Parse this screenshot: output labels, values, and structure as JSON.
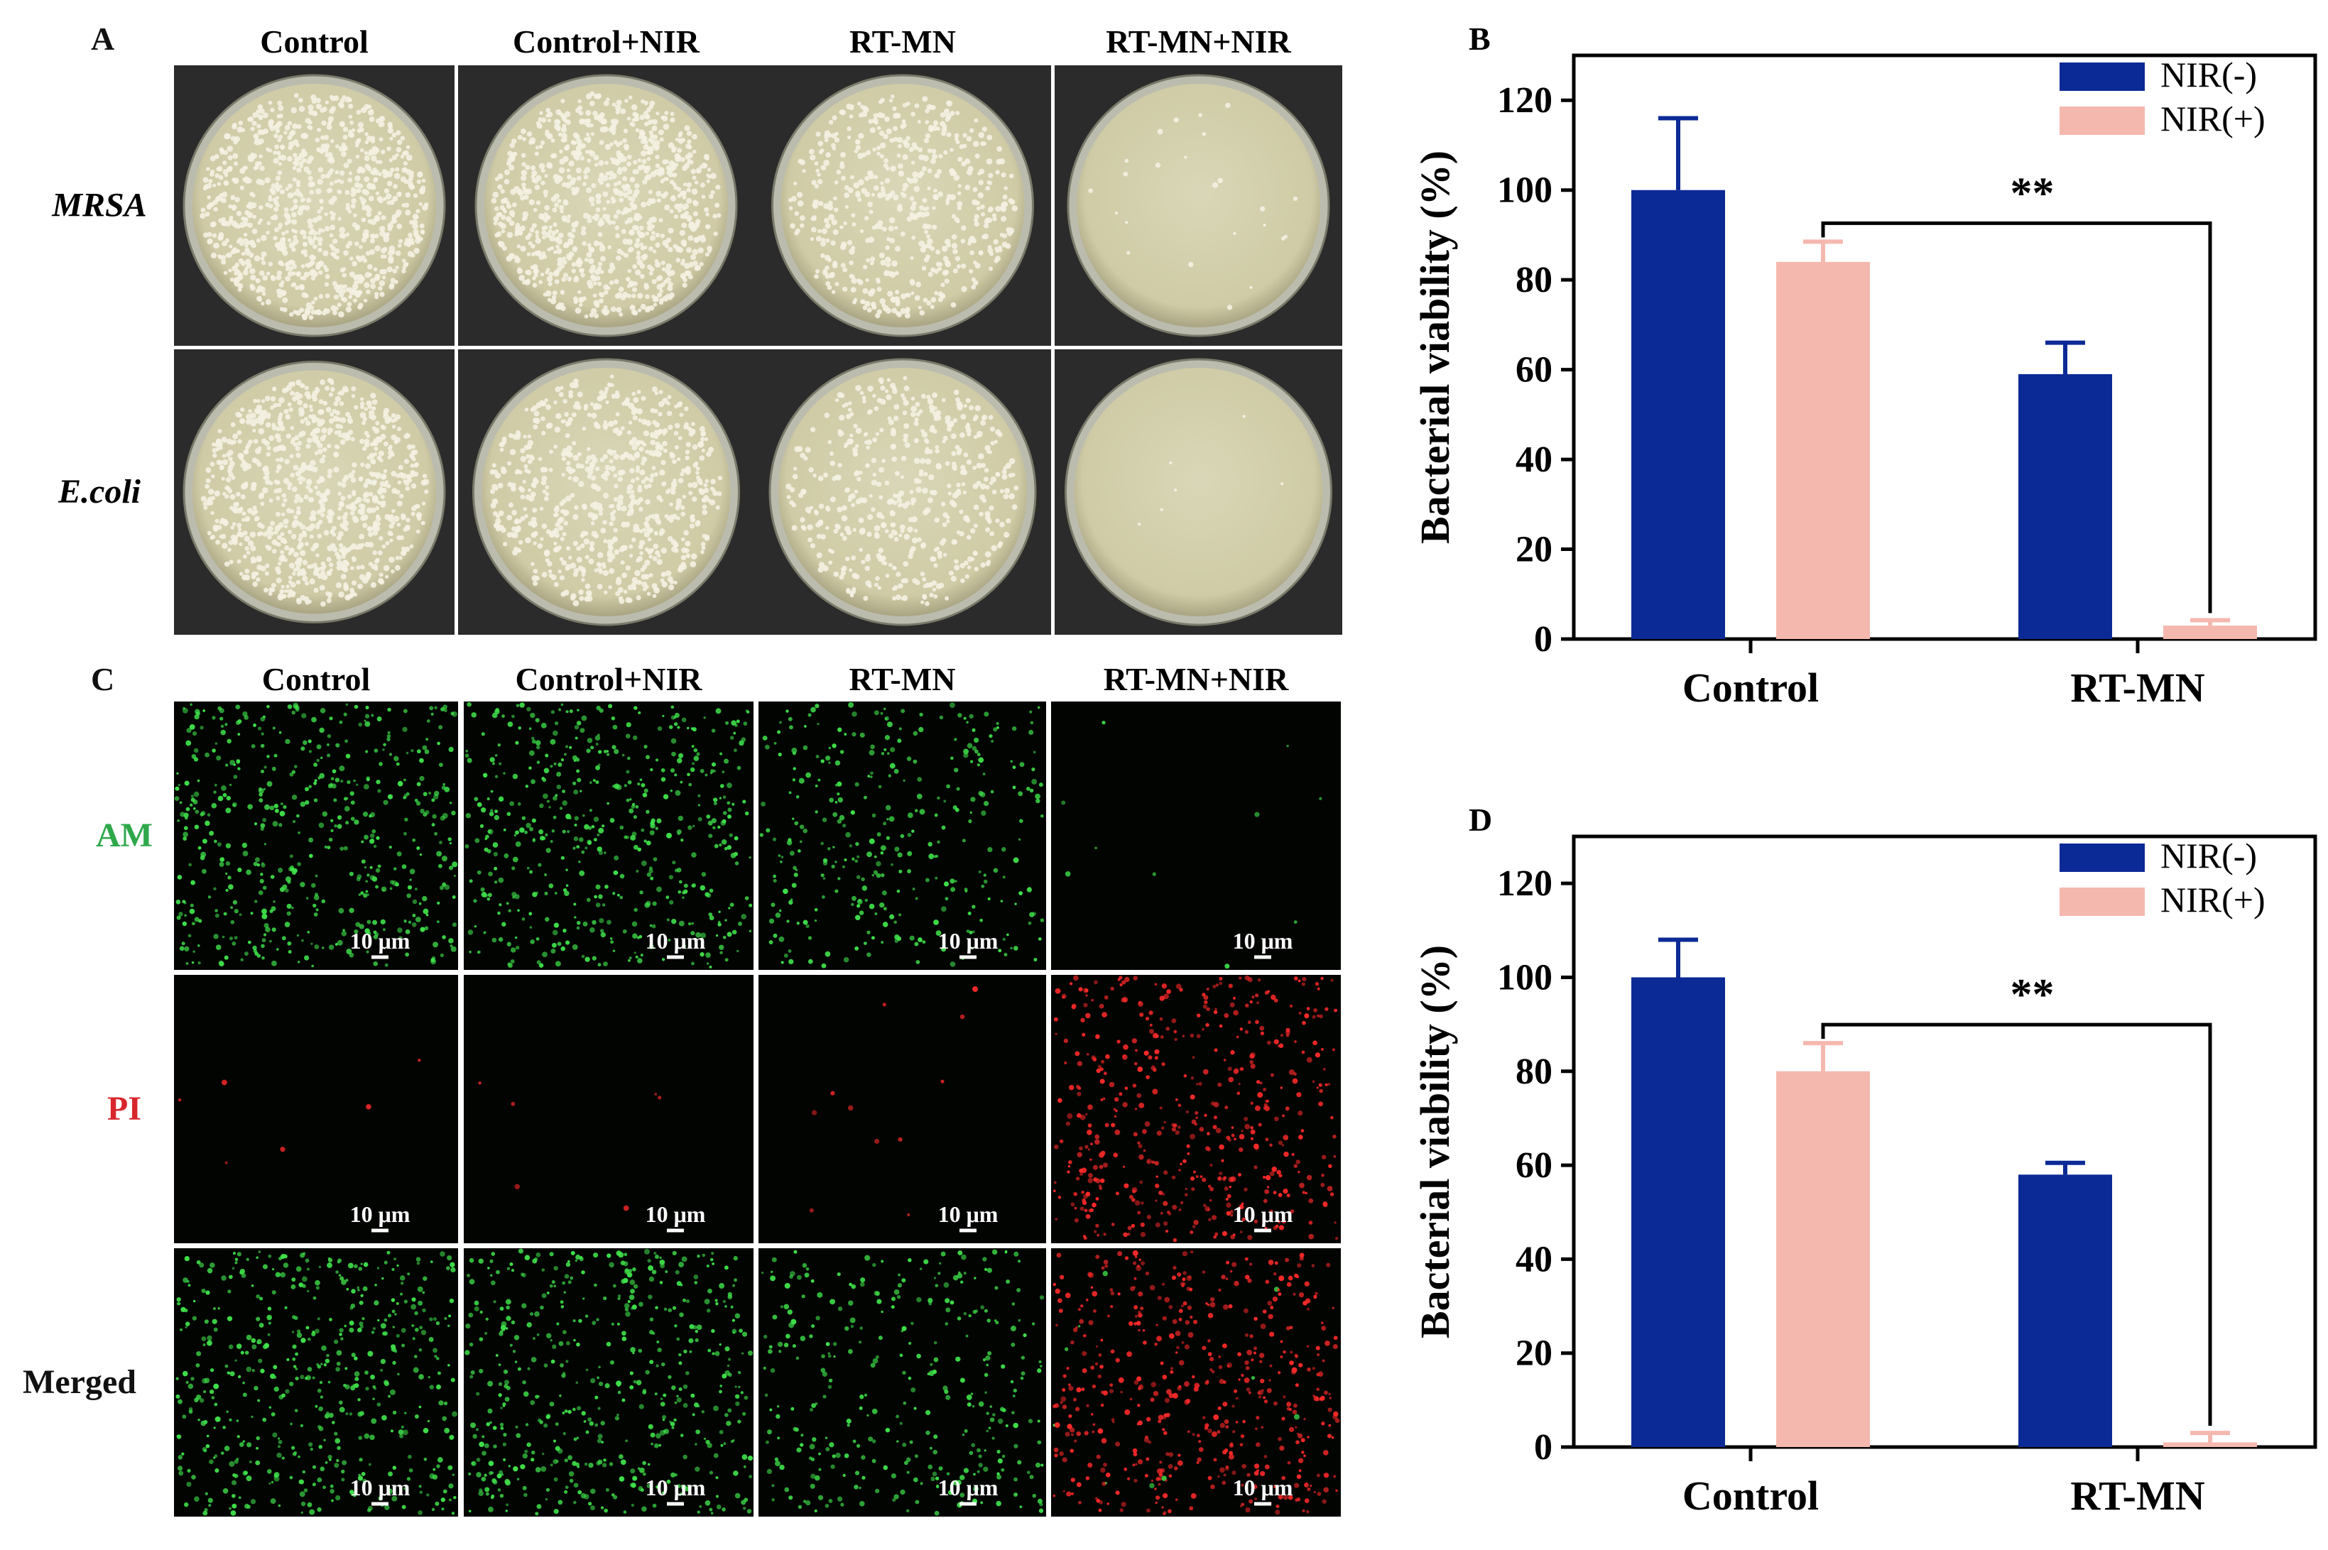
{
  "panel_a": {
    "letter": "A",
    "columns": [
      "Control",
      "Control+NIR",
      "RT-MN",
      "RT-MN+NIR"
    ],
    "rows": [
      "MRSA",
      "E.coli"
    ],
    "colony_density": [
      [
        1.0,
        1.0,
        0.6,
        0.02
      ],
      [
        1.0,
        0.8,
        0.55,
        0.0
      ]
    ]
  },
  "panel_c": {
    "letter": "C",
    "columns": [
      "Control",
      "Control+NIR",
      "RT-MN",
      "RT-MN+NIR"
    ],
    "rows": [
      {
        "label": "AM",
        "color": "#2ea84a"
      },
      {
        "label": "PI",
        "color": "#d8262b"
      },
      {
        "label": "Merged",
        "color": "#111111"
      }
    ],
    "scale_label": "10 μm",
    "green_density": [
      [
        1.0,
        1.0,
        0.65,
        0.02
      ],
      [
        0,
        0,
        0,
        0
      ],
      [
        1.0,
        1.0,
        0.65,
        0.02
      ]
    ],
    "red_density": [
      [
        0,
        0,
        0,
        0
      ],
      [
        0.01,
        0.01,
        0.02,
        0.9
      ],
      [
        0,
        0,
        0,
        0.9
      ]
    ]
  },
  "colors": {
    "nir_minus": "#0c2a96",
    "nir_plus": "#f5b8ae",
    "axis": "#000000"
  },
  "chart_data": [
    {
      "panel": "B",
      "type": "bar",
      "categories": [
        "Control",
        "RT-MN"
      ],
      "series": [
        {
          "name": "NIR(-)",
          "values": [
            100,
            59
          ],
          "errors": [
            16,
            7
          ]
        },
        {
          "name": "NIR(+)",
          "values": [
            84,
            3
          ],
          "errors": [
            4.5,
            1.2
          ]
        }
      ],
      "ylabel": "Bacterial viability (%)",
      "ylim": [
        0,
        130
      ],
      "yticks": [
        0,
        20,
        40,
        60,
        80,
        100,
        120
      ],
      "significance": "**",
      "legend": "top-right"
    },
    {
      "panel": "D",
      "type": "bar",
      "categories": [
        "Control",
        "RT-MN"
      ],
      "series": [
        {
          "name": "NIR(-)",
          "values": [
            100,
            58
          ],
          "errors": [
            8,
            2.5
          ]
        },
        {
          "name": "NIR(+)",
          "values": [
            80,
            1
          ],
          "errors": [
            6,
            2
          ]
        }
      ],
      "ylabel": "Bacterial viability (%)",
      "ylim": [
        0,
        130
      ],
      "yticks": [
        0,
        20,
        40,
        60,
        80,
        100,
        120
      ],
      "significance": "**",
      "legend": "top-right"
    }
  ]
}
